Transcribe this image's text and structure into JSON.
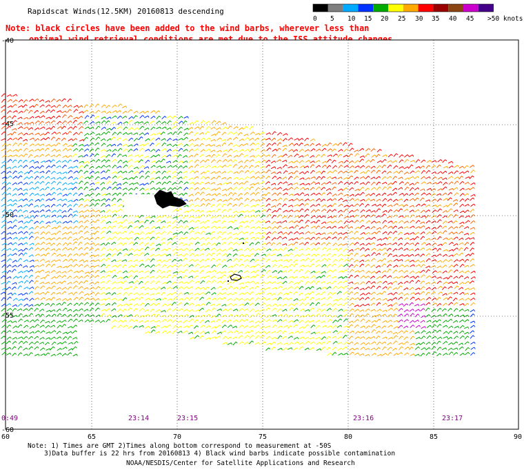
{
  "header": {
    "title": "Rapidscat Winds(12.5KM) 20160813 descending",
    "note_line1": "Note: black circles have been added to the wind barbs, wherever less than",
    "note_line2": "optimal wind retrieval conditions are met due to the ISS attitude changes."
  },
  "legend": {
    "labels": [
      "0",
      "5",
      "10",
      "15",
      "20",
      "25",
      "30",
      "35",
      "40",
      "45",
      ">50 knots"
    ],
    "colors": [
      "#000000",
      "#7f7f7f",
      "#00aaff",
      "#0033ff",
      "#00aa00",
      "#ffff00",
      "#ffaa00",
      "#ff0000",
      "#990000",
      "#8b4513",
      "#cc00cc",
      "#440088"
    ]
  },
  "axes": {
    "lat_labels": [
      "-40",
      "-45",
      "-50",
      "-55",
      "-60"
    ],
    "lon_labels": [
      "60",
      "65",
      "70",
      "75",
      "80",
      "85",
      "90"
    ]
  },
  "times": [
    "0:49",
    "23:14",
    "23:15",
    "23:16",
    "23:17"
  ],
  "footer": {
    "line1": "Note: 1) Times are GMT 2)Times along bottom correspond to measurement at -50S",
    "line2": "3)Data buffer is 22 hrs from 20160813 4) Black wind barbs indicate possible contamination",
    "line3": "NOAA/NESDIS/Center for Satellite Applications and Research"
  },
  "colors": {
    "title": "#000000",
    "note": "#ff0000",
    "time": "#800080",
    "grid": "#000000"
  }
}
